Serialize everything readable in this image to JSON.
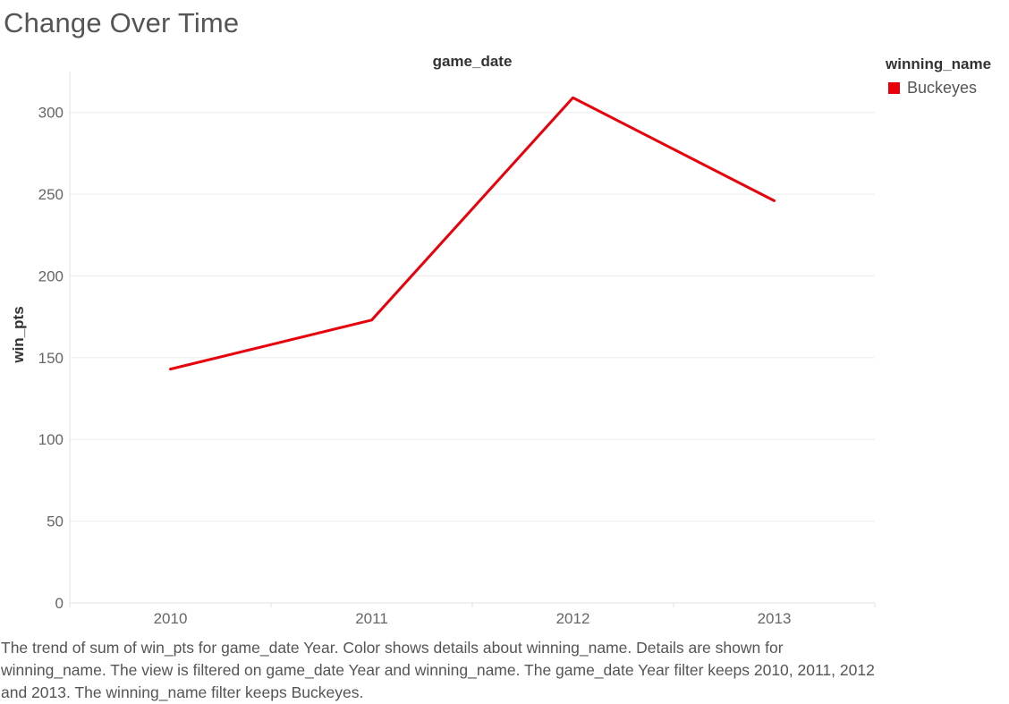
{
  "title": "Change Over Time",
  "chart_data": {
    "type": "line",
    "x_header": "game_date",
    "ylabel": "win_pts",
    "categories": [
      "2010",
      "2011",
      "2012",
      "2013"
    ],
    "ylim": [
      0,
      325
    ],
    "yticks": [
      0,
      50,
      100,
      150,
      200,
      250,
      300
    ],
    "grid": true,
    "legend": {
      "title": "winning_name",
      "placement": "top-right"
    },
    "series": [
      {
        "name": "Buckeyes",
        "color": "#e8000b",
        "values": [
          143,
          173,
          309,
          246
        ]
      }
    ]
  },
  "caption": "The trend of sum of win_pts for game_date Year.  Color shows details about winning_name.  Details are shown for winning_name. The view is filtered on game_date Year and winning_name. The game_date Year filter keeps 2010, 2011, 2012 and 2013. The winning_name filter keeps Buckeyes."
}
